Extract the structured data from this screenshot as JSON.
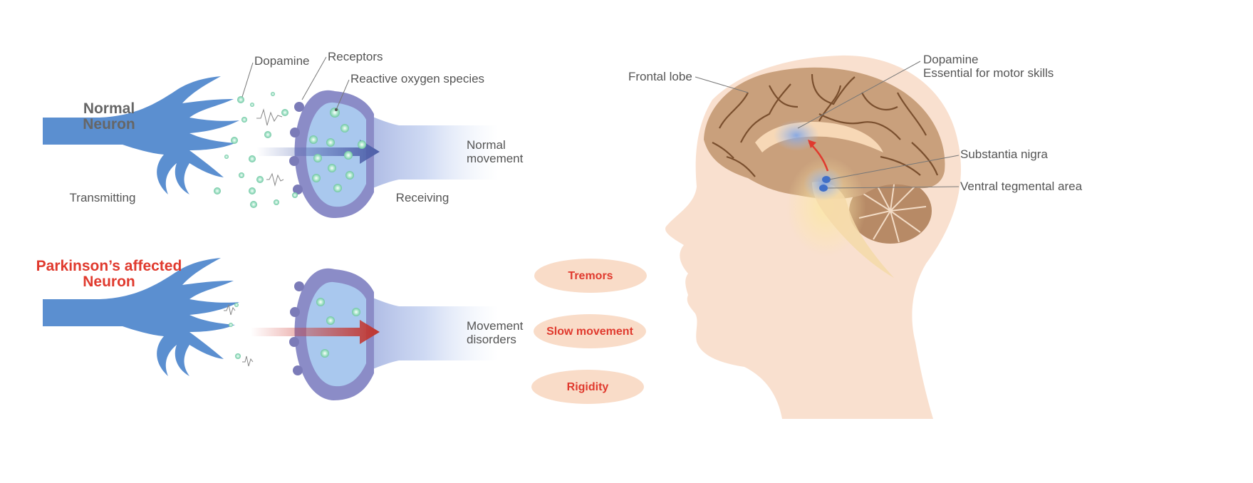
{
  "colors": {
    "neuron_blue": "#5b8fd0",
    "receiver_purple": "#8b8cc7",
    "receiver_inner": "#a9c8ee",
    "dopamine_green": "#7ecfae",
    "parkinson_red": "#e03a2e",
    "skin": "#f9e0cf",
    "brain": "#c9a07c",
    "text_gray": "#555555"
  },
  "normal": {
    "title_line1": "Normal",
    "title_line2": "Neuron",
    "transmitting": "Transmitting",
    "receiving": "Receiving",
    "outcome_line1": "Normal",
    "outcome_line2": "movement",
    "labels": {
      "dopamine": "Dopamine",
      "receptors": "Receptors",
      "ros": "Reactive oxygen species"
    }
  },
  "parkinson": {
    "title_line1": "Parkinson’s affected",
    "title_line2": "Neuron",
    "outcome_line1": "Movement",
    "outcome_line2": "disorders"
  },
  "symptoms": [
    "Tremors",
    "Slow movement",
    "Rigidity"
  ],
  "brain": {
    "frontal_lobe": "Frontal lobe",
    "dopamine_line1": "Dopamine",
    "dopamine_line2": "Essential for motor skills",
    "substantia_nigra": "Substantia nigra",
    "vta": "Ventral tegmental area"
  }
}
